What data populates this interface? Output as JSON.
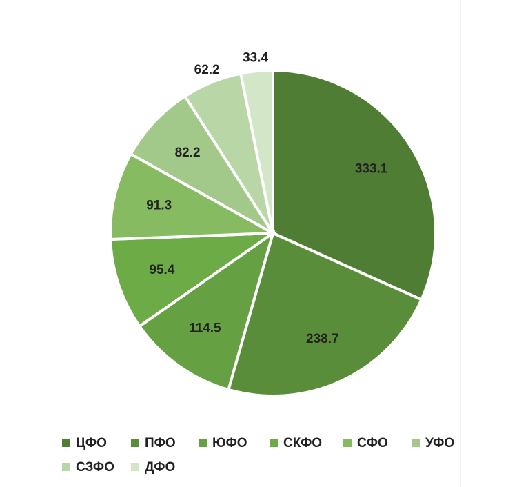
{
  "chart_data": {
    "type": "pie",
    "categories": [
      "ЦФО",
      "ПФО",
      "ЮФО",
      "СКФО",
      "СФО",
      "УФО",
      "СЗФО",
      "ДФО"
    ],
    "values": [
      333.1,
      238.7,
      114.5,
      95.4,
      91.3,
      82.2,
      62.2,
      33.4
    ],
    "colors": [
      "#4e7d33",
      "#5a8d3a",
      "#65a042",
      "#6dab47",
      "#86bb62",
      "#a2c989",
      "#b9d6a6",
      "#d4e6c8"
    ],
    "legend": "bottom"
  }
}
